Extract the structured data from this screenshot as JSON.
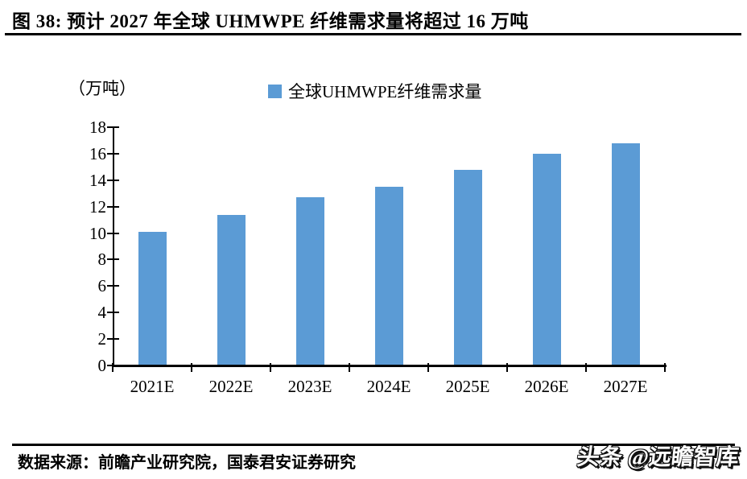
{
  "header": {
    "title": "图 38:  预计 2027 年全球 UHMWPE 纤维需求量将超过 16 万吨"
  },
  "chart_data": {
    "type": "bar",
    "title": "",
    "unit_label": "（万吨）",
    "legend": [
      {
        "name": "全球UHMWPE纤维需求量",
        "color": "#5B9BD5"
      }
    ],
    "legend_position": "top",
    "categories": [
      "2021E",
      "2022E",
      "2023E",
      "2024E",
      "2025E",
      "2026E",
      "2027E"
    ],
    "values": [
      10.1,
      11.4,
      12.7,
      13.5,
      14.8,
      16.0,
      16.8
    ],
    "xlabel": "",
    "ylabel": "万吨",
    "ylim": [
      0,
      18
    ],
    "ytick_step": 2,
    "grid": false
  },
  "colors": {
    "bar": "#5B9BD5",
    "axis": "#000000"
  },
  "footer": {
    "source": "数据来源：前瞻产业研究院，国泰君安证券研究",
    "watermark": "头条 @远瞻智库"
  }
}
